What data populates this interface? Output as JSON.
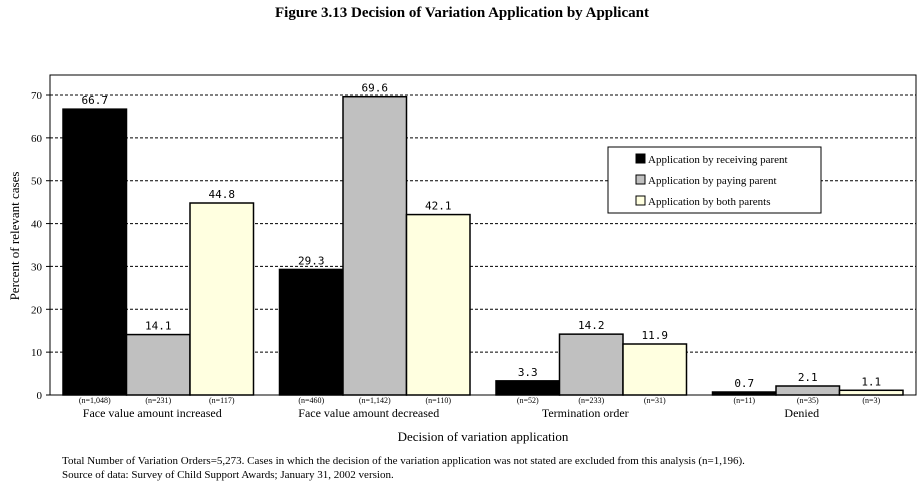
{
  "figure": {
    "title": "Figure 3.13  Decision of Variation Application by Applicant",
    "footnotes": [
      "Total Number of Variation Orders=5,273.  Cases in which the decision of the variation application was not stated are excluded from this analysis (n=1,196).",
      "Source of data:  Survey of Child Support Awards; January 31, 2002 version."
    ]
  },
  "colors": {
    "receiving": "#000000",
    "paying": "#c0c0c0",
    "both": "#ffffe0",
    "grid": "#000000"
  },
  "chart_data": {
    "type": "bar",
    "title": "Figure 3.13  Decision of Variation Application by Applicant",
    "xlabel": "Decision of variation application",
    "ylabel": "Percent of relevant cases",
    "ylim": [
      0,
      70
    ],
    "yticks": [
      "0",
      "10",
      "20",
      "30",
      "40",
      "50",
      "60",
      "70"
    ],
    "grid": "horizontal dashed",
    "legend_position": "right",
    "categories": [
      "Face value amount increased",
      "Face value amount decreased",
      "Termination order",
      "Denied"
    ],
    "series": [
      {
        "name": "Application by receiving parent",
        "values": [
          66.7,
          29.3,
          3.3,
          0.7
        ],
        "labels": [
          "66.7",
          "29.3",
          "3.3",
          "0.7"
        ],
        "n": [
          "(n=1,048)",
          "(n=460)",
          "(n=52)",
          "(n=11)"
        ]
      },
      {
        "name": "Application by paying parent",
        "values": [
          14.1,
          69.6,
          14.2,
          2.1
        ],
        "labels": [
          "14.1",
          "69.6",
          "14.2",
          "2.1"
        ],
        "n": [
          "(n=231)",
          "(n=1,142)",
          "(n=233)",
          "(n=35)"
        ]
      },
      {
        "name": "Application by both parents",
        "values": [
          44.8,
          42.1,
          11.9,
          1.1
        ],
        "labels": [
          "44.8",
          "42.1",
          "11.9",
          "1.1"
        ],
        "n": [
          "(n=117)",
          "(n=110)",
          "(n=31)",
          "(n=3)"
        ]
      }
    ]
  }
}
